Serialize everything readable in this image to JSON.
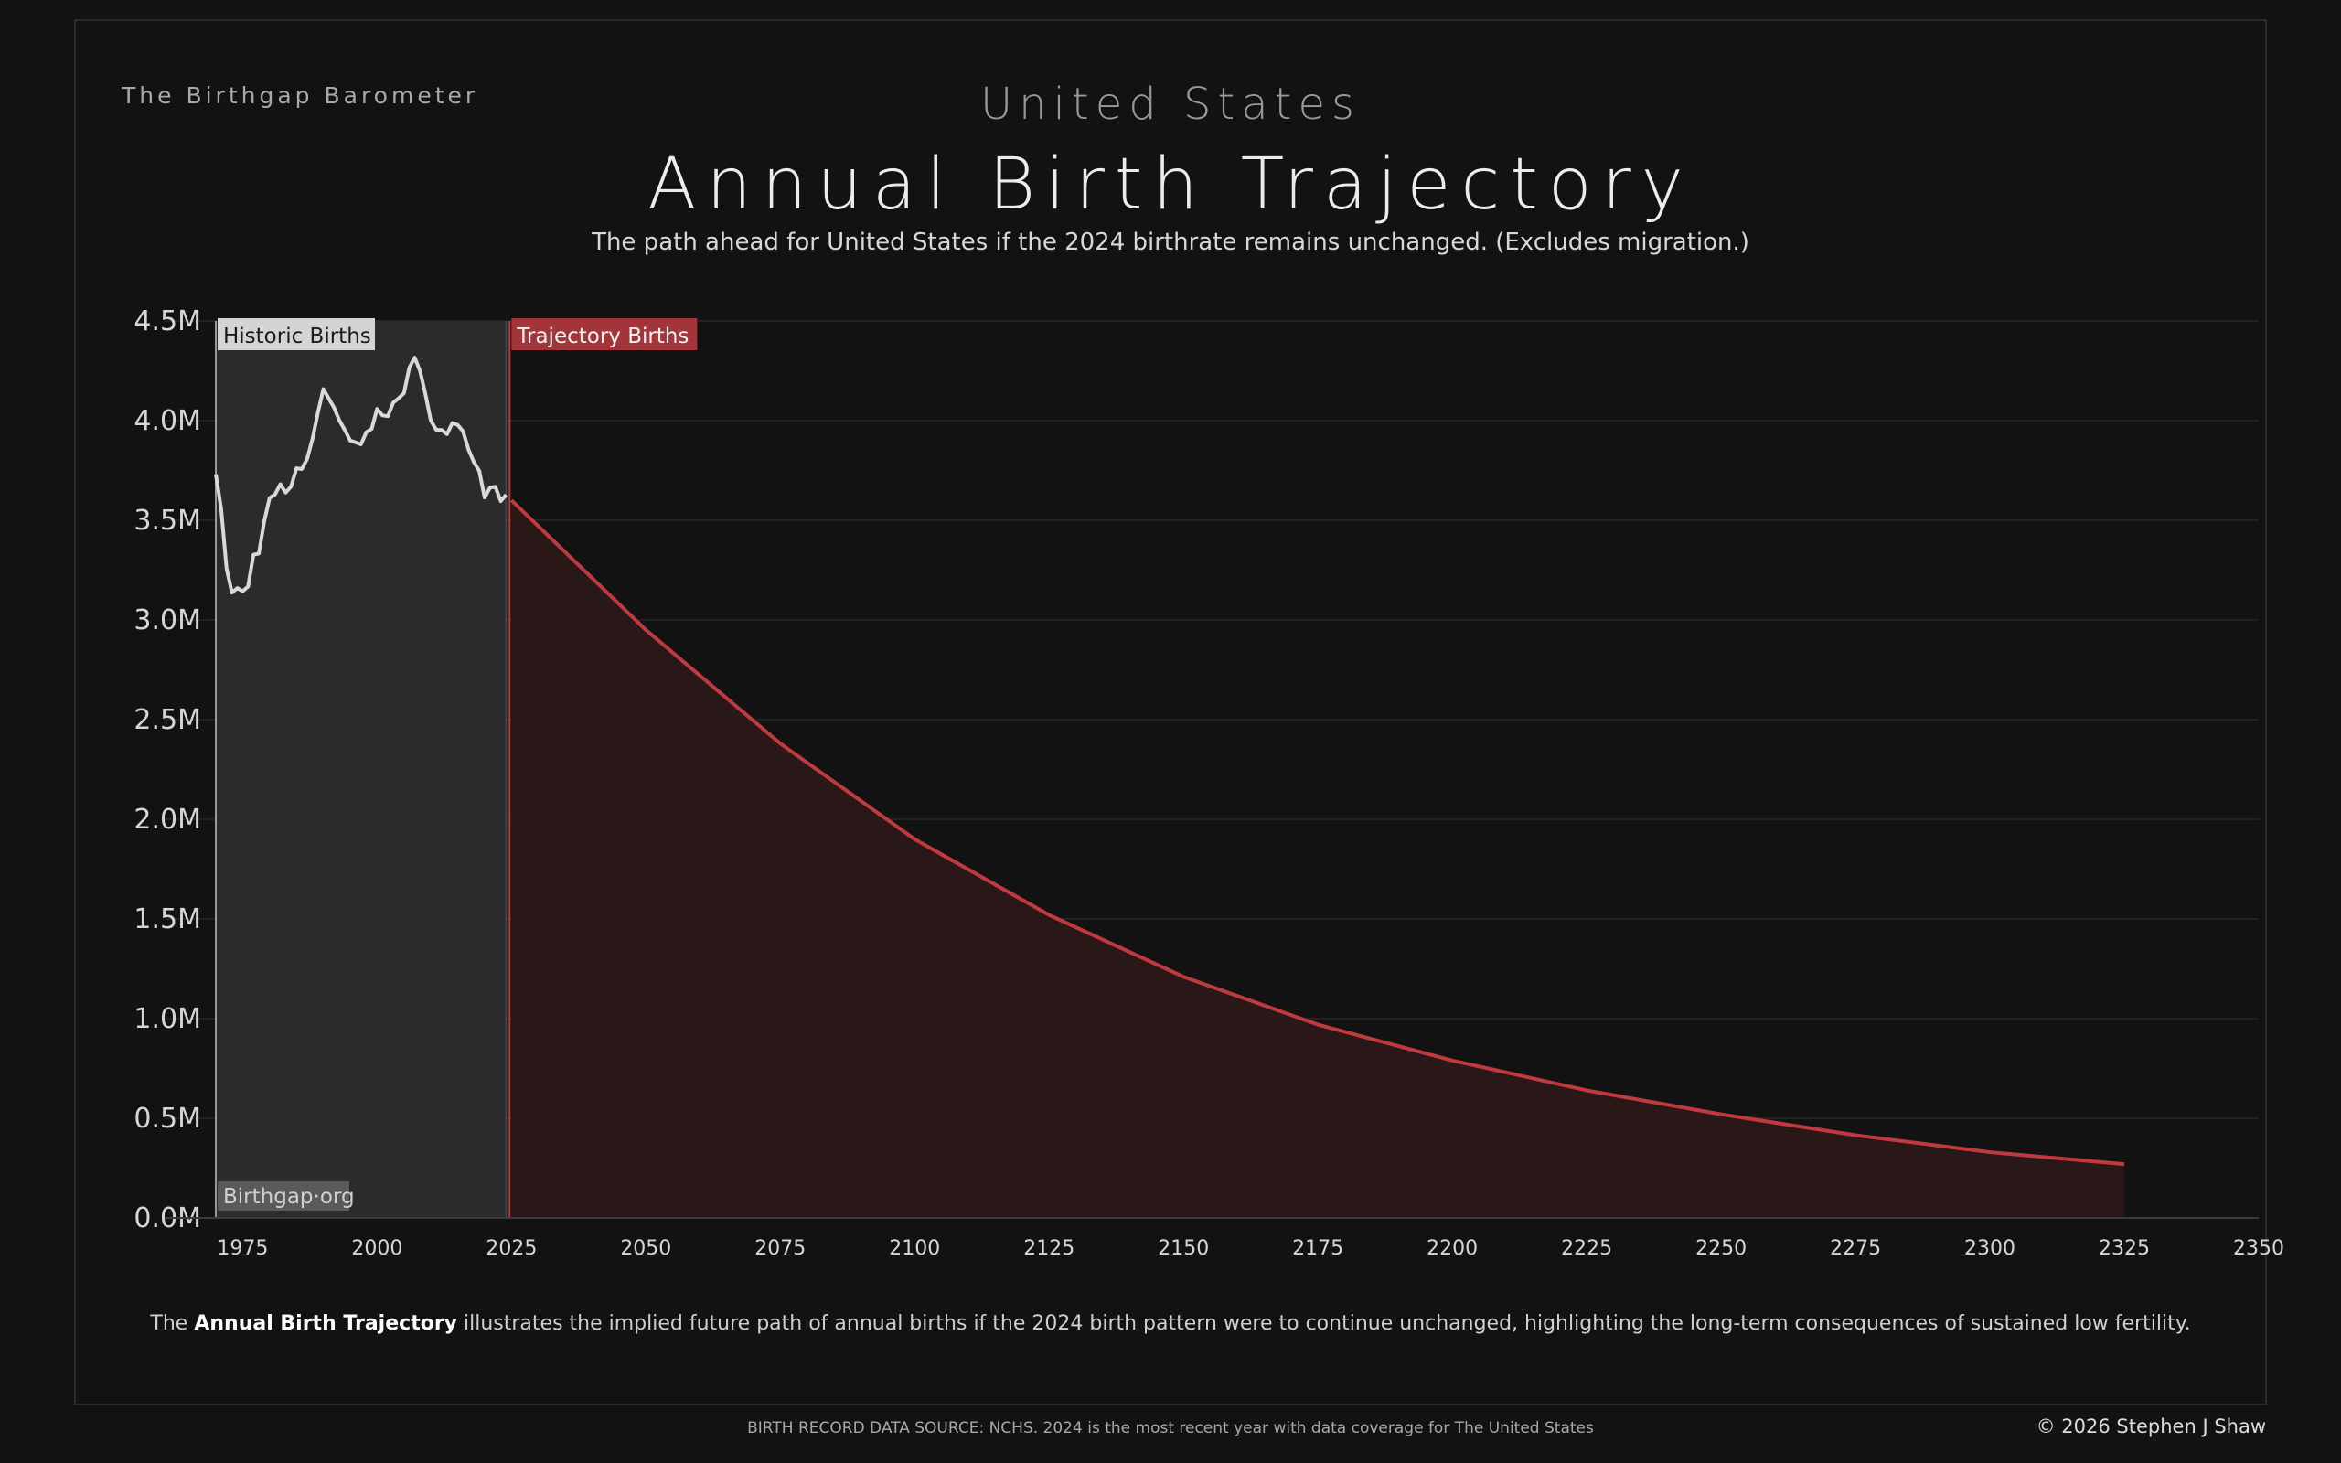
{
  "header": {
    "brand": "The Birthgap Barometer",
    "country": "United States",
    "title": "Annual Birth Trajectory",
    "subtitle": "The path ahead for United States if the 2024 birthrate remains unchanged.  (Excludes migration.)"
  },
  "caption": {
    "prefix": "The ",
    "bold": "Annual Birth Trajectory",
    "suffix": " illustrates the implied future path of annual births if the 2024 birth pattern were to continue unchanged, highlighting the long-term consequences of sustained low fertility."
  },
  "footer": {
    "source": "BIRTH RECORD DATA SOURCE: NCHS. 2024 is the most recent year with data coverage for The United States",
    "copyright": "© 2026 Stephen J Shaw"
  },
  "colors": {
    "background": "#121212",
    "historic_line": "#d9d9d9",
    "historic_fill": "#2b2b2b",
    "trajectory_line": "#c0393f",
    "trajectory_fill": "#2a1819",
    "trajectory_label_bg": "#a3353a",
    "historic_label_bg": "#d4d4d4"
  },
  "chart_data": {
    "type": "area",
    "title": "Annual Birth Trajectory",
    "xlabel": "",
    "ylabel": "",
    "xlim": [
      1970,
      2350
    ],
    "ylim": [
      0,
      4500000
    ],
    "x_ticks": [
      1975,
      2000,
      2025,
      2050,
      2075,
      2100,
      2125,
      2150,
      2175,
      2200,
      2225,
      2250,
      2275,
      2300,
      2325,
      2350
    ],
    "y_ticks": [
      0,
      500000,
      1000000,
      1500000,
      2000000,
      2500000,
      3000000,
      3500000,
      4000000,
      4500000
    ],
    "y_tick_labels": [
      "0.0M",
      "0.5M",
      "1.0M",
      "1.5M",
      "2.0M",
      "2.5M",
      "3.0M",
      "3.5M",
      "4.0M",
      "4.5M"
    ],
    "grid": true,
    "annotations": {
      "historic_label": "Historic Births",
      "trajectory_label": "Trajectory Births",
      "site_label": "Birthgap·org",
      "divider_year": 2024
    },
    "series": [
      {
        "name": "Historic Births",
        "x": [
          1970,
          1971,
          1972,
          1973,
          1974,
          1975,
          1976,
          1977,
          1978,
          1979,
          1980,
          1981,
          1982,
          1983,
          1984,
          1985,
          1986,
          1987,
          1988,
          1989,
          1990,
          1991,
          1992,
          1993,
          1994,
          1995,
          1996,
          1997,
          1998,
          1999,
          2000,
          2001,
          2002,
          2003,
          2004,
          2005,
          2006,
          2007,
          2008,
          2009,
          2010,
          2011,
          2012,
          2013,
          2014,
          2015,
          2016,
          2017,
          2018,
          2019,
          2020,
          2021,
          2022,
          2023,
          2024
        ],
        "values": [
          3731000,
          3556000,
          3258000,
          3137000,
          3160000,
          3144000,
          3168000,
          3327000,
          3333000,
          3494000,
          3612000,
          3629000,
          3681000,
          3639000,
          3669000,
          3761000,
          3757000,
          3809000,
          3910000,
          4041000,
          4158000,
          4111000,
          4065000,
          4000000,
          3953000,
          3900000,
          3891000,
          3881000,
          3942000,
          3959000,
          4059000,
          4026000,
          4022000,
          4090000,
          4112000,
          4138000,
          4266000,
          4316000,
          4248000,
          4131000,
          4000000,
          3954000,
          3953000,
          3932000,
          3988000,
          3978000,
          3946000,
          3855000,
          3792000,
          3748000,
          3614000,
          3664000,
          3668000,
          3596000,
          3628000
        ]
      },
      {
        "name": "Trajectory Births",
        "x": [
          2025,
          2050,
          2075,
          2100,
          2125,
          2150,
          2175,
          2200,
          2225,
          2250,
          2275,
          2300,
          2325
        ],
        "values": [
          3600000,
          2950000,
          2380000,
          1900000,
          1520000,
          1210000,
          970000,
          790000,
          640000,
          520000,
          415000,
          330000,
          270000
        ]
      }
    ]
  }
}
